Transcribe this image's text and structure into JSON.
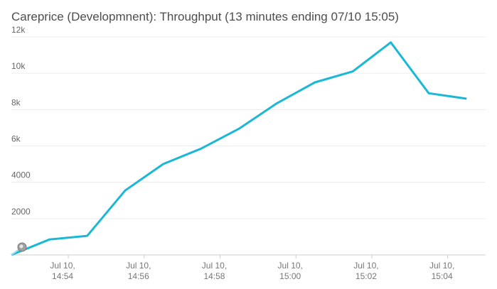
{
  "header": {
    "title": "Careprice (Developmnent): Throughput (13 minutes ending 07/10 15:05)"
  },
  "chart_data": {
    "type": "line",
    "title": "Careprice (Developmnent): Throughput (13 minutes ending 07/10 15:05)",
    "xlabel": "",
    "ylabel": "",
    "ylim": [
      0,
      12000
    ],
    "grid": true,
    "legend": "none",
    "line_color": "#1bb8d6",
    "y_ticks": [
      {
        "value": 2000,
        "label": "2000"
      },
      {
        "value": 4000,
        "label": "4000"
      },
      {
        "value": 6000,
        "label": "6k"
      },
      {
        "value": 8000,
        "label": "8k"
      },
      {
        "value": 10000,
        "label": "10k"
      },
      {
        "value": 12000,
        "label": "12k"
      }
    ],
    "x_ticks": [
      {
        "value": "14:54",
        "line1": "Jul 10,",
        "line2": "14:54"
      },
      {
        "value": "14:56",
        "line1": "Jul 10,",
        "line2": "14:56"
      },
      {
        "value": "14:58",
        "line1": "Jul 10,",
        "line2": "14:58"
      },
      {
        "value": "15:00",
        "line1": "Jul 10,",
        "line2": "15:00"
      },
      {
        "value": "15:02",
        "line1": "Jul 10,",
        "line2": "15:02"
      },
      {
        "value": "15:04",
        "line1": "Jul 10,",
        "line2": "15:04"
      }
    ],
    "x_range": [
      "14:52:30",
      "15:05:00"
    ],
    "series": [
      {
        "x": [
          "14:52:30",
          "14:53:30",
          "14:54:30",
          "14:55:30",
          "14:56:30",
          "14:57:30",
          "14:58:30",
          "14:59:30",
          "15:00:30",
          "15:01:30",
          "15:02:30",
          "15:03:30",
          "15:04:30"
        ],
        "values": [
          0,
          850,
          1050,
          3550,
          5000,
          5850,
          6950,
          8350,
          9500,
          10100,
          11700,
          8900,
          8600
        ]
      }
    ]
  }
}
